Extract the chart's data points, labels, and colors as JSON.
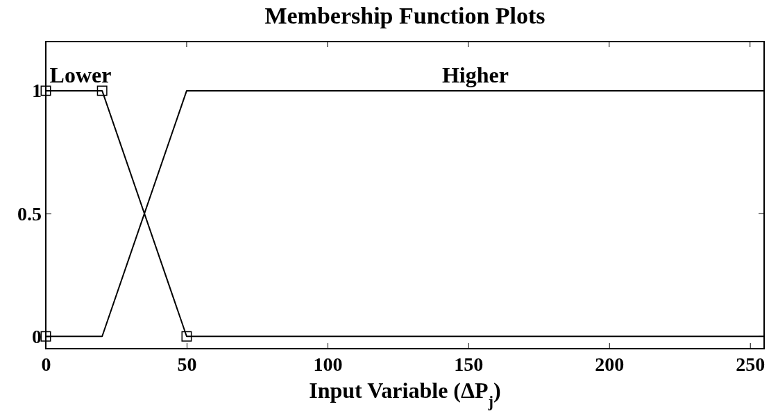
{
  "chart_data": {
    "type": "line",
    "title": "Membership Function Plots",
    "xlabel": "Input Variable (ΔP$_{j}$)",
    "xlim": [
      0,
      255
    ],
    "xticks": [
      0,
      50,
      100,
      150,
      200,
      250
    ],
    "ylim": [
      -0.05,
      1.2
    ],
    "yticks": [
      0,
      0.5,
      1
    ],
    "grid": false,
    "legend": "top",
    "series": [
      {
        "name": "Lower",
        "color": "#000000",
        "x": [
          0,
          0,
          20,
          50,
          255
        ],
        "values": [
          0,
          1,
          1,
          0,
          0
        ]
      },
      {
        "name": "Higher",
        "color": "#000000",
        "x": [
          0,
          20,
          50,
          255
        ],
        "values": [
          0,
          0,
          1,
          1
        ]
      },
      {
        "type": "scatter",
        "marker": "square",
        "color": "#000000",
        "x": [
          0,
          0,
          20,
          50
        ],
        "values": [
          0,
          1,
          1,
          0
        ]
      }
    ]
  }
}
